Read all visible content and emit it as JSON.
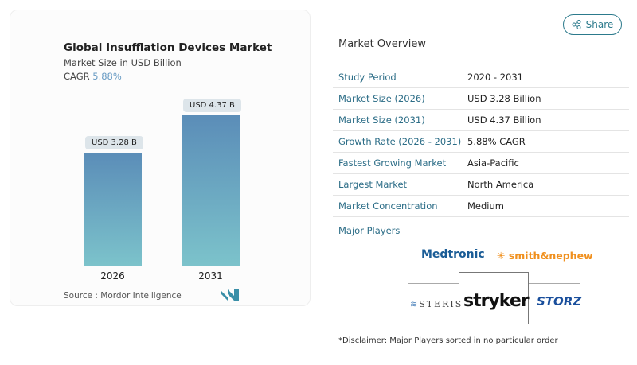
{
  "chart": {
    "title": "Global Insufflation Devices Market",
    "subtitle": "Market Size in USD Billion",
    "cagr_label": "CAGR",
    "cagr_value": "5.88%",
    "source": "Source :  Mordor Intelligence"
  },
  "chart_data": {
    "type": "bar",
    "categories": [
      "2026",
      "2031"
    ],
    "values": [
      3.28,
      4.37
    ],
    "data_labels": [
      "USD 3.28 B",
      "USD 4.37 B"
    ],
    "ylim": [
      0,
      4.6
    ],
    "colors": {
      "bar_top": "#5b8db8",
      "bar_bottom": "#7cc3cb"
    }
  },
  "share_label": "Share",
  "overview": {
    "title": "Market Overview",
    "rows": [
      {
        "k": "Study Period",
        "v": "2020 - 2031"
      },
      {
        "k": "Market Size (2026)",
        "v": "USD 3.28 Billion"
      },
      {
        "k": "Market Size (2031)",
        "v": "USD 4.37 Billion"
      },
      {
        "k": "Growth Rate (2026 - 2031)",
        "v": "5.88% CAGR"
      },
      {
        "k": "Fastest Growing Market",
        "v": "Asia-Pacific"
      },
      {
        "k": "Largest Market",
        "v": "North America"
      },
      {
        "k": "Market Concentration",
        "v": "Medium"
      }
    ]
  },
  "players": {
    "title": "Major Players",
    "logos": [
      "Medtronic",
      "smith&nephew",
      "STERIS",
      "stryker",
      "STORZ"
    ]
  },
  "disclaimer": "*Disclaimer: Major Players sorted in no particular order"
}
